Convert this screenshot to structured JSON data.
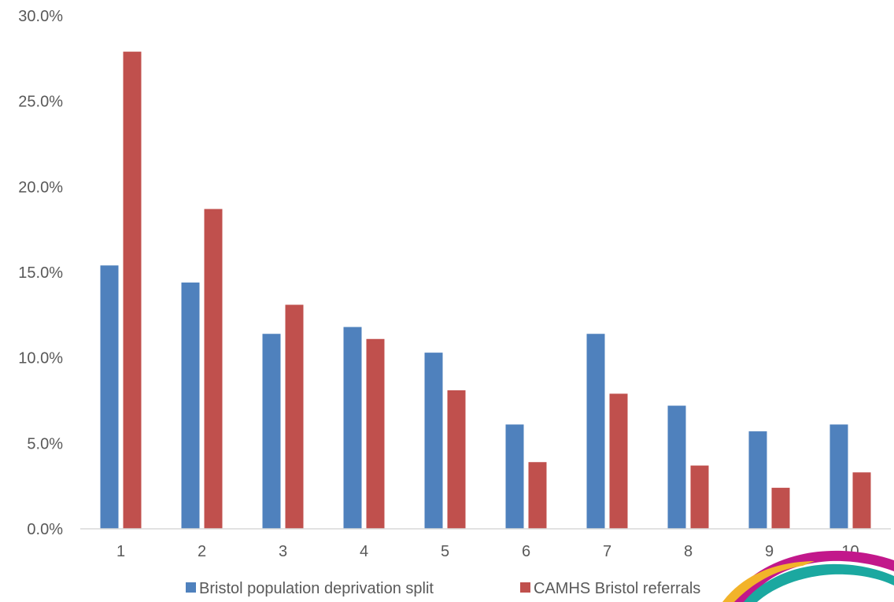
{
  "chart_data": {
    "type": "bar",
    "categories": [
      "1",
      "2",
      "3",
      "4",
      "5",
      "6",
      "7",
      "8",
      "9",
      "10"
    ],
    "series": [
      {
        "name": "Bristol population deprivation split",
        "color": "#4F81BD",
        "values": [
          15.4,
          14.4,
          11.4,
          11.8,
          10.3,
          6.1,
          11.4,
          7.2,
          5.7,
          6.1
        ]
      },
      {
        "name": "CAMHS Bristol referrals",
        "color": "#C0504D",
        "values": [
          27.9,
          18.7,
          13.1,
          11.1,
          8.1,
          3.9,
          7.9,
          3.7,
          2.4,
          3.3
        ]
      }
    ],
    "y_ticks": [
      "0.0%",
      "5.0%",
      "10.0%",
      "15.0%",
      "20.0%",
      "25.0%",
      "30.0%"
    ],
    "ylim": [
      0,
      30
    ],
    "grid": false,
    "legend_position": "bottom",
    "title": "",
    "xlabel": "",
    "ylabel": ""
  },
  "logo": {
    "name": "logo-arc-decoration",
    "colors": [
      "#C2188B",
      "#1BA8A0",
      "#F2B32A"
    ]
  }
}
